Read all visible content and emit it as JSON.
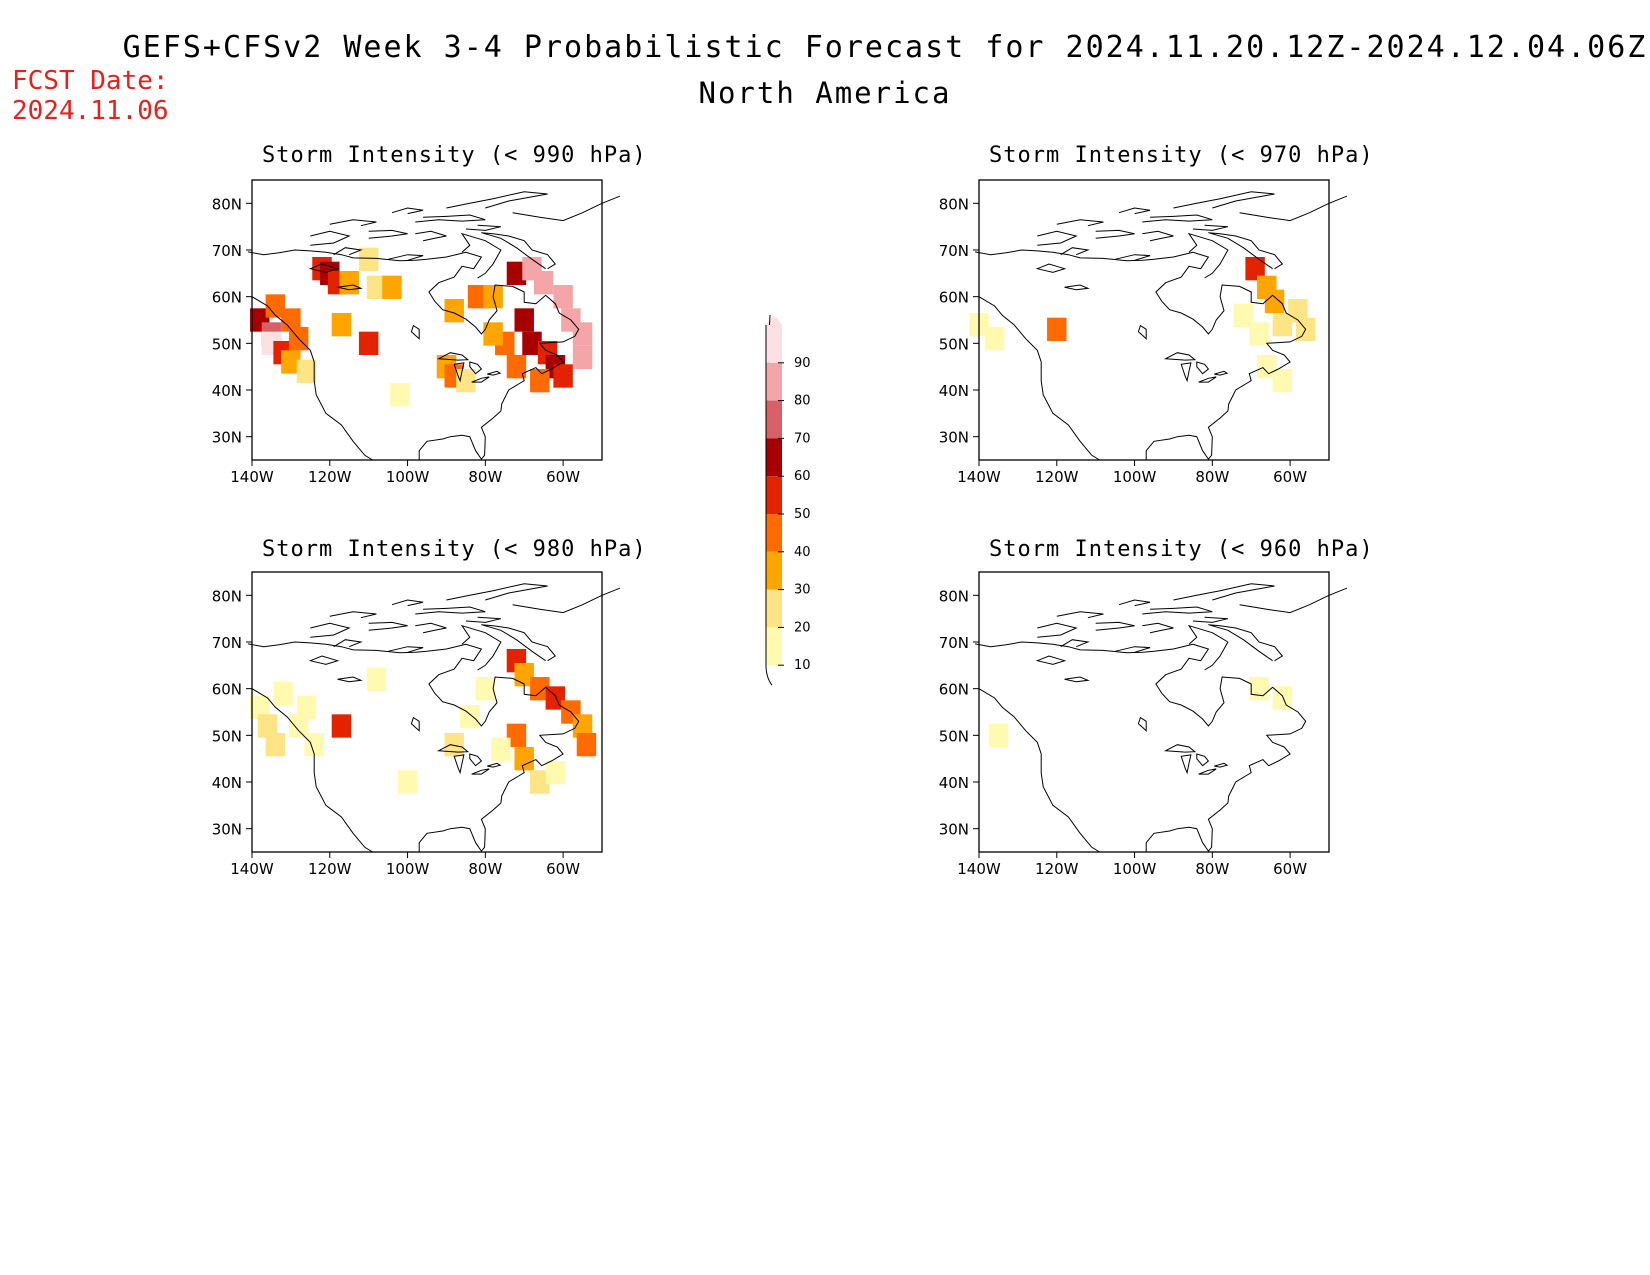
{
  "header": {
    "title": "GEFS+CFSv2 Week 3-4 Probabilistic Forecast for 2024.11.20.12Z-2024.12.04.06Z",
    "region": "North America",
    "fcst_label": "FCST Date:",
    "fcst_date": "2024.11.06"
  },
  "colors": {
    "accent_red": "#e8201c",
    "levels": [
      "#fffab0",
      "#fde484",
      "#ffa500",
      "#ff6b00",
      "#e32200",
      "#a80000",
      "#d86066",
      "#f4a5a8",
      "#fde0e1"
    ]
  },
  "axes": {
    "lat_labels": [
      "80N",
      "70N",
      "60N",
      "50N",
      "40N",
      "30N"
    ],
    "lat_values": [
      80,
      70,
      60,
      50,
      40,
      30
    ],
    "lon_labels": [
      "140W",
      "120W",
      "100W",
      "80W",
      "60W"
    ],
    "lon_values": [
      -140,
      -120,
      -100,
      -80,
      -60
    ],
    "lon_range": [
      -140,
      -50
    ],
    "lat_range": [
      25,
      85
    ]
  },
  "colorbar": {
    "levels": [
      10,
      20,
      30,
      40,
      50,
      60,
      70,
      80,
      90
    ],
    "labels": [
      "10",
      "20",
      "30",
      "40",
      "50",
      "60",
      "70",
      "80",
      "90"
    ]
  },
  "panels": [
    {
      "id": "p990",
      "title": "Storm Intensity (< 990 hPa)",
      "cells": [
        [
          -138,
          55,
          6
        ],
        [
          -135,
          52,
          7
        ],
        [
          -135,
          50,
          9
        ],
        [
          -132,
          48,
          5
        ],
        [
          -134,
          58,
          4
        ],
        [
          -130,
          55,
          4
        ],
        [
          -130,
          46,
          3
        ],
        [
          -128,
          51,
          4
        ],
        [
          -126,
          44,
          2
        ],
        [
          -122,
          66,
          5
        ],
        [
          -120,
          65,
          6
        ],
        [
          -118,
          63,
          5
        ],
        [
          -115,
          63,
          3
        ],
        [
          -108,
          62,
          2
        ],
        [
          -110,
          68,
          2
        ],
        [
          -104,
          62,
          3
        ],
        [
          -117,
          54,
          3
        ],
        [
          -110,
          50,
          5
        ],
        [
          -102,
          39,
          1
        ],
        [
          -90,
          45,
          3
        ],
        [
          -88,
          43,
          4
        ],
        [
          -85,
          42,
          2
        ],
        [
          -88,
          57,
          3
        ],
        [
          -82,
          60,
          4
        ],
        [
          -78,
          60,
          3
        ],
        [
          -72,
          65,
          6
        ],
        [
          -68,
          66,
          8
        ],
        [
          -65,
          63,
          8
        ],
        [
          -60,
          60,
          8
        ],
        [
          -58,
          55,
          8
        ],
        [
          -55,
          52,
          8
        ],
        [
          -55,
          47,
          8
        ],
        [
          -70,
          55,
          6
        ],
        [
          -68,
          50,
          6
        ],
        [
          -64,
          48,
          5
        ],
        [
          -62,
          45,
          6
        ],
        [
          -60,
          43,
          5
        ],
        [
          -66,
          42,
          4
        ],
        [
          -72,
          45,
          4
        ],
        [
          -75,
          50,
          4
        ],
        [
          -78,
          52,
          3
        ]
      ]
    },
    {
      "id": "p970",
      "title": "Storm Intensity (< 970 hPa)",
      "cells": [
        [
          -136,
          51,
          1
        ],
        [
          -140,
          54,
          1
        ],
        [
          -120,
          53,
          4
        ],
        [
          -69,
          66,
          5
        ],
        [
          -66,
          62,
          3
        ],
        [
          -64,
          59,
          3
        ],
        [
          -62,
          54,
          2
        ],
        [
          -58,
          57,
          2
        ],
        [
          -56,
          53,
          2
        ],
        [
          -72,
          56,
          1
        ],
        [
          -68,
          52,
          1
        ],
        [
          -66,
          45,
          1
        ],
        [
          -62,
          42,
          1
        ]
      ]
    },
    {
      "id": "p980",
      "title": "Storm Intensity (< 980 hPa)",
      "cells": [
        [
          -138,
          56,
          1
        ],
        [
          -136,
          52,
          2
        ],
        [
          -134,
          48,
          2
        ],
        [
          -132,
          59,
          1
        ],
        [
          -128,
          52,
          1
        ],
        [
          -126,
          56,
          1
        ],
        [
          -124,
          48,
          1
        ],
        [
          -117,
          52,
          5
        ],
        [
          -108,
          62,
          1
        ],
        [
          -100,
          40,
          1
        ],
        [
          -88,
          48,
          2
        ],
        [
          -84,
          54,
          1
        ],
        [
          -80,
          60,
          1
        ],
        [
          -72,
          66,
          5
        ],
        [
          -70,
          63,
          3
        ],
        [
          -66,
          60,
          4
        ],
        [
          -62,
          58,
          5
        ],
        [
          -58,
          55,
          4
        ],
        [
          -55,
          52,
          3
        ],
        [
          -54,
          48,
          4
        ],
        [
          -72,
          50,
          4
        ],
        [
          -70,
          45,
          3
        ],
        [
          -66,
          40,
          2
        ],
        [
          -62,
          42,
          1
        ],
        [
          -76,
          47,
          1
        ]
      ]
    },
    {
      "id": "p960",
      "title": "Storm Intensity (< 960 hPa)",
      "cells": [
        [
          -135,
          50,
          1
        ],
        [
          -68,
          60,
          1
        ],
        [
          -62,
          58,
          1
        ]
      ]
    }
  ]
}
